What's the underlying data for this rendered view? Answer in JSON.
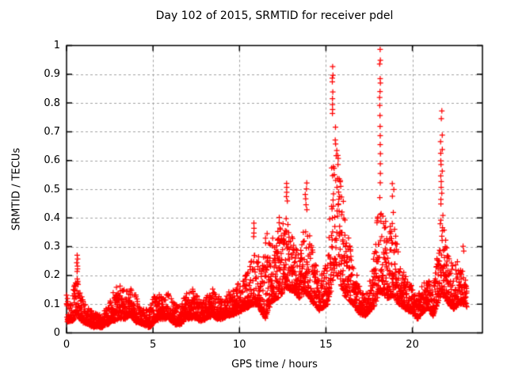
{
  "chart_data": {
    "type": "scatter",
    "title": "Day 102 of 2015, SRMTID for receiver pdel",
    "xlabel": "GPS time / hours",
    "ylabel": "SRMTID / TECUs",
    "xlim": [
      0,
      24.05
    ],
    "ylim": [
      0,
      1
    ],
    "xticks": [
      {
        "v": 0,
        "t": "0"
      },
      {
        "v": 5,
        "t": "5"
      },
      {
        "v": 10,
        "t": "10"
      },
      {
        "v": 15,
        "t": "15"
      },
      {
        "v": 20,
        "t": "20"
      }
    ],
    "yticks": [
      {
        "v": 0,
        "t": "0"
      },
      {
        "v": 0.1,
        "t": "0.1"
      },
      {
        "v": 0.2,
        "t": "0.2"
      },
      {
        "v": 0.3,
        "t": "0.3"
      },
      {
        "v": 0.4,
        "t": "0.4"
      },
      {
        "v": 0.5,
        "t": "0.5"
      },
      {
        "v": 0.6,
        "t": "0.6"
      },
      {
        "v": 0.7,
        "t": "0.7"
      },
      {
        "v": 0.8,
        "t": "0.8"
      },
      {
        "v": 0.9,
        "t": "0.9"
      },
      {
        "v": 1,
        "t": "1"
      }
    ],
    "legend": "none",
    "grid": {
      "shown": true,
      "style": "dashed"
    },
    "colors": {
      "axis": "#000000",
      "grid": "#a0a0a0",
      "background": "#ffffff",
      "marker": "#ff0000"
    },
    "marker": {
      "glyph": "+",
      "color": "#ff0000",
      "size": 7
    },
    "seed": 20151021,
    "points_per_hour": 140,
    "density_bias": 2.0,
    "envelope": [
      [
        0.0,
        0.04,
        0.13
      ],
      [
        0.3,
        0.04,
        0.1
      ],
      [
        0.45,
        0.05,
        0.18
      ],
      [
        0.6,
        0.07,
        0.2
      ],
      [
        0.75,
        0.05,
        0.17
      ],
      [
        0.9,
        0.04,
        0.12
      ],
      [
        1.2,
        0.03,
        0.09
      ],
      [
        1.6,
        0.02,
        0.07
      ],
      [
        2.0,
        0.02,
        0.06
      ],
      [
        2.4,
        0.03,
        0.1
      ],
      [
        2.7,
        0.04,
        0.15
      ],
      [
        3.0,
        0.05,
        0.17
      ],
      [
        3.4,
        0.05,
        0.15
      ],
      [
        3.7,
        0.06,
        0.16
      ],
      [
        4.0,
        0.04,
        0.13
      ],
      [
        4.4,
        0.03,
        0.09
      ],
      [
        4.8,
        0.02,
        0.08
      ],
      [
        5.1,
        0.04,
        0.14
      ],
      [
        5.5,
        0.05,
        0.13
      ],
      [
        5.9,
        0.05,
        0.14
      ],
      [
        6.3,
        0.03,
        0.1
      ],
      [
        6.6,
        0.03,
        0.09
      ],
      [
        6.9,
        0.05,
        0.15
      ],
      [
        7.2,
        0.05,
        0.16
      ],
      [
        7.5,
        0.05,
        0.13
      ],
      [
        7.8,
        0.04,
        0.11
      ],
      [
        8.1,
        0.05,
        0.13
      ],
      [
        8.4,
        0.06,
        0.16
      ],
      [
        8.7,
        0.05,
        0.13
      ],
      [
        9.0,
        0.05,
        0.12
      ],
      [
        9.3,
        0.06,
        0.14
      ],
      [
        9.6,
        0.06,
        0.15
      ],
      [
        9.9,
        0.07,
        0.17
      ],
      [
        10.2,
        0.08,
        0.19
      ],
      [
        10.5,
        0.09,
        0.22
      ],
      [
        10.8,
        0.1,
        0.28
      ],
      [
        11.0,
        0.1,
        0.3
      ],
      [
        11.2,
        0.08,
        0.24
      ],
      [
        11.5,
        0.05,
        0.3
      ],
      [
        11.8,
        0.1,
        0.32
      ],
      [
        12.1,
        0.12,
        0.35
      ],
      [
        12.4,
        0.13,
        0.38
      ],
      [
        12.7,
        0.16,
        0.44
      ],
      [
        12.9,
        0.15,
        0.38
      ],
      [
        13.2,
        0.14,
        0.3
      ],
      [
        13.5,
        0.12,
        0.28
      ],
      [
        13.8,
        0.14,
        0.42
      ],
      [
        14.0,
        0.13,
        0.38
      ],
      [
        14.3,
        0.1,
        0.26
      ],
      [
        14.6,
        0.08,
        0.2
      ],
      [
        14.9,
        0.09,
        0.22
      ],
      [
        15.1,
        0.1,
        0.28
      ],
      [
        15.35,
        0.15,
        0.62
      ],
      [
        15.5,
        0.22,
        0.75
      ],
      [
        15.65,
        0.2,
        0.68
      ],
      [
        15.9,
        0.16,
        0.5
      ],
      [
        16.1,
        0.13,
        0.42
      ],
      [
        16.4,
        0.11,
        0.3
      ],
      [
        16.7,
        0.09,
        0.22
      ],
      [
        17.0,
        0.06,
        0.16
      ],
      [
        17.3,
        0.06,
        0.14
      ],
      [
        17.6,
        0.08,
        0.2
      ],
      [
        17.9,
        0.1,
        0.35
      ],
      [
        18.1,
        0.14,
        0.5
      ],
      [
        18.35,
        0.13,
        0.42
      ],
      [
        18.6,
        0.12,
        0.35
      ],
      [
        18.85,
        0.13,
        0.45
      ],
      [
        19.1,
        0.11,
        0.35
      ],
      [
        19.4,
        0.09,
        0.24
      ],
      [
        19.7,
        0.08,
        0.2
      ],
      [
        20.0,
        0.07,
        0.16
      ],
      [
        20.3,
        0.05,
        0.13
      ],
      [
        20.6,
        0.07,
        0.17
      ],
      [
        20.9,
        0.09,
        0.2
      ],
      [
        21.2,
        0.06,
        0.14
      ],
      [
        21.45,
        0.1,
        0.3
      ],
      [
        21.7,
        0.14,
        0.45
      ],
      [
        21.9,
        0.12,
        0.36
      ],
      [
        22.1,
        0.1,
        0.28
      ],
      [
        22.4,
        0.08,
        0.22
      ],
      [
        22.7,
        0.1,
        0.28
      ],
      [
        22.95,
        0.1,
        0.22
      ],
      [
        23.15,
        0.09,
        0.18
      ]
    ],
    "outlier_columns": [
      {
        "x": 0.62,
        "dx": 0.03,
        "ys": [
          0.27,
          0.256,
          0.245,
          0.234,
          0.223,
          0.214
        ]
      },
      {
        "x": 10.85,
        "dx": 0.05,
        "ys": [
          0.38,
          0.364,
          0.349,
          0.335
        ]
      },
      {
        "x": 11.55,
        "dx": 0.05,
        "ys": [
          0.345,
          0.328,
          0.312
        ]
      },
      {
        "x": 12.33,
        "dx": 0.04,
        "ys": [
          0.4,
          0.385
        ]
      },
      {
        "x": 12.72,
        "dx": 0.05,
        "ys": [
          0.52,
          0.505,
          0.49,
          0.475,
          0.46
        ]
      },
      {
        "x": 13.85,
        "dx": 0.06,
        "ys": [
          0.52,
          0.5,
          0.483,
          0.465,
          0.448,
          0.43
        ]
      },
      {
        "x": 15.38,
        "dx": 0.04,
        "ys": [
          0.925,
          0.895,
          0.885,
          0.872,
          0.84,
          0.815,
          0.795,
          0.778,
          0.762
        ]
      },
      {
        "x": 18.12,
        "dx": 0.03,
        "ys": [
          0.986,
          0.95,
          0.936,
          0.885,
          0.87,
          0.842,
          0.82,
          0.79,
          0.755,
          0.72,
          0.688,
          0.655,
          0.622,
          0.59,
          0.556,
          0.522
        ]
      },
      {
        "x": 18.88,
        "dx": 0.05,
        "ys": [
          0.52,
          0.498,
          0.475
        ]
      },
      {
        "x": 21.68,
        "dx": 0.05,
        "ys": [
          0.773,
          0.746,
          0.69,
          0.665,
          0.638,
          0.624,
          0.6,
          0.585,
          0.565,
          0.545,
          0.525,
          0.505,
          0.486,
          0.466,
          0.448
        ]
      },
      {
        "x": 22.92,
        "dx": 0.06,
        "ys": [
          0.3,
          0.285
        ]
      }
    ]
  }
}
